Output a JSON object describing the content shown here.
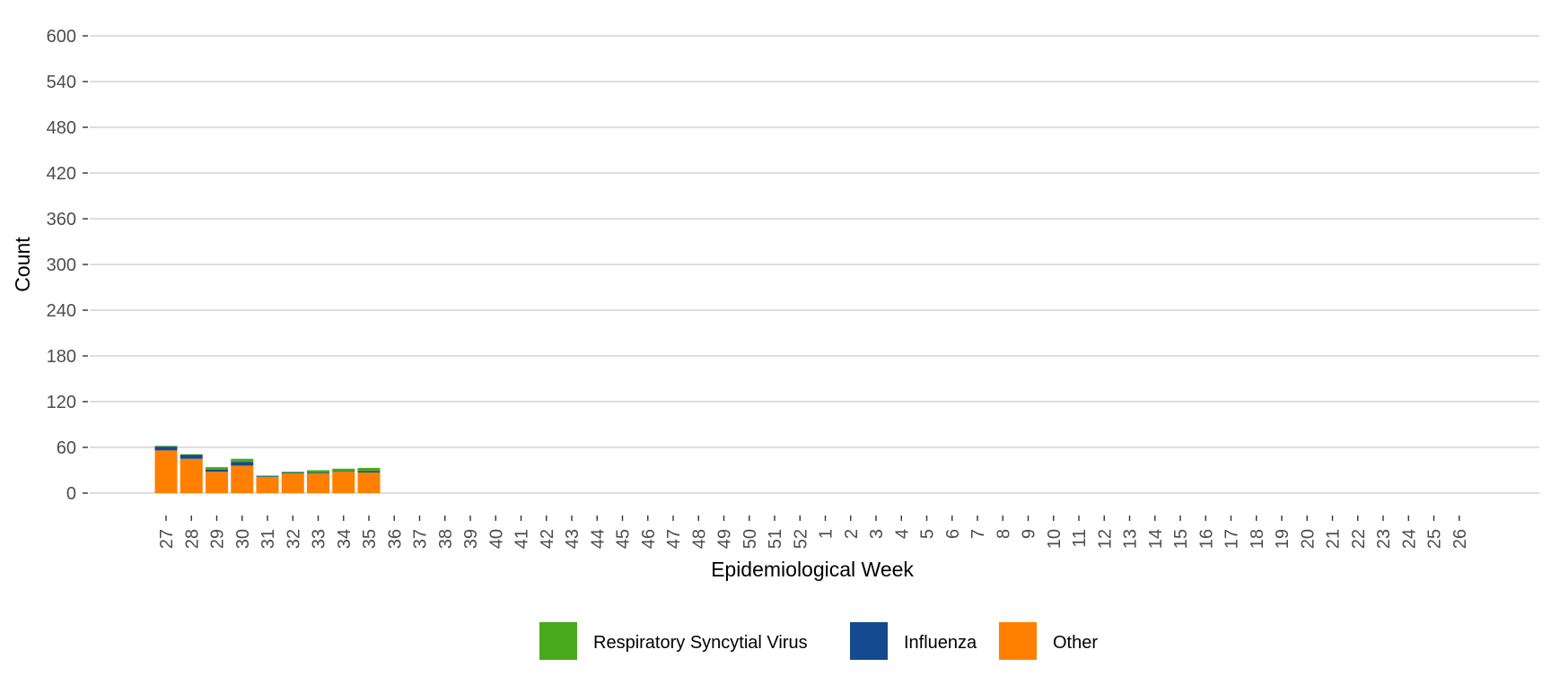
{
  "chart_data": {
    "type": "bar",
    "stacked": true,
    "title": "",
    "xlabel": "Epidemiological Week",
    "ylabel": "Count",
    "ylim": [
      0,
      600
    ],
    "yticks": [
      0,
      60,
      120,
      180,
      240,
      300,
      360,
      420,
      480,
      540,
      600
    ],
    "grid": true,
    "legend_position": "bottom",
    "categories": [
      "27",
      "28",
      "29",
      "30",
      "31",
      "32",
      "33",
      "34",
      "35",
      "36",
      "37",
      "38",
      "39",
      "40",
      "41",
      "42",
      "43",
      "44",
      "45",
      "46",
      "47",
      "48",
      "49",
      "50",
      "51",
      "52",
      "1",
      "2",
      "3",
      "4",
      "5",
      "6",
      "7",
      "8",
      "9",
      "10",
      "11",
      "12",
      "13",
      "14",
      "15",
      "16",
      "17",
      "18",
      "19",
      "20",
      "21",
      "22",
      "23",
      "24",
      "25",
      "26"
    ],
    "series": [
      {
        "name": "Other",
        "color": "#FF7F00",
        "values": [
          56,
          45,
          28,
          36,
          21,
          26,
          26,
          28,
          27,
          null,
          null,
          null,
          null,
          null,
          null,
          null,
          null,
          null,
          null,
          null,
          null,
          null,
          null,
          null,
          null,
          null,
          null,
          null,
          null,
          null,
          null,
          null,
          null,
          null,
          null,
          null,
          null,
          null,
          null,
          null,
          null,
          null,
          null,
          null,
          null,
          null,
          null,
          null,
          null,
          null,
          null,
          null
        ]
      },
      {
        "name": "Influenza",
        "color": "#144A8E",
        "values": [
          5,
          5,
          3,
          5,
          1,
          1,
          1,
          1,
          2,
          null,
          null,
          null,
          null,
          null,
          null,
          null,
          null,
          null,
          null,
          null,
          null,
          null,
          null,
          null,
          null,
          null,
          null,
          null,
          null,
          null,
          null,
          null,
          null,
          null,
          null,
          null,
          null,
          null,
          null,
          null,
          null,
          null,
          null,
          null,
          null,
          null,
          null,
          null,
          null,
          null,
          null,
          null
        ]
      },
      {
        "name": "Respiratory Syncytial Virus",
        "color": "#4AA81B",
        "values": [
          1,
          1,
          3,
          4,
          1,
          1,
          3,
          3,
          4,
          null,
          null,
          null,
          null,
          null,
          null,
          null,
          null,
          null,
          null,
          null,
          null,
          null,
          null,
          null,
          null,
          null,
          null,
          null,
          null,
          null,
          null,
          null,
          null,
          null,
          null,
          null,
          null,
          null,
          null,
          null,
          null,
          null,
          null,
          null,
          null,
          null,
          null,
          null,
          null,
          null,
          null,
          null
        ]
      }
    ],
    "legend": [
      {
        "name": "Respiratory Syncytial Virus",
        "color": "#4AA81B"
      },
      {
        "name": "Influenza",
        "color": "#144A8E"
      },
      {
        "name": "Other",
        "color": "#FF7F00"
      }
    ]
  }
}
